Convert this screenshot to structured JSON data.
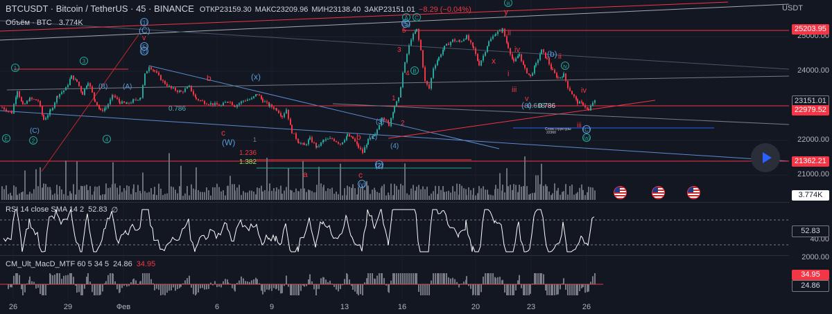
{
  "header": {
    "symbol": "BTCUSDT · Bitcoin / TetherUS · 45 · BINANCE",
    "open": "ОТКР23159.30",
    "high": "МАКС23209.96",
    "low": "МИН23138.40",
    "close": "ЗАКР23151.01",
    "change": "−8.29 (−0.04%)"
  },
  "volume_legend": {
    "label": "Объём · BTC",
    "value": "3.774K"
  },
  "rsi_legend": {
    "label": "RSI 14 close SMA 14 2",
    "value": "52.83",
    "extra": "∅"
  },
  "macd_legend": {
    "label": "CM_Ult_MacD_MTF 60 5 34 5",
    "value1": "24.86",
    "value2": "34.95"
  },
  "price_axis": {
    "currency": "USDT",
    "ticks": [
      "25000.00",
      "24000.00",
      "23000.00",
      "22000.00",
      "21000.00"
    ],
    "tags": [
      {
        "text": "25203.95",
        "color": "#f23645"
      },
      {
        "text": "23151.01",
        "color": "#787b86"
      },
      {
        "text": "22979.52",
        "color": "#f23645"
      },
      {
        "text": "21362.21",
        "color": "#f23645"
      },
      {
        "text": "3.774K",
        "color": "#d1d4dc"
      }
    ]
  },
  "rsi_axis": {
    "ticks": [
      "40.00"
    ],
    "tag": "52.83"
  },
  "macd_axis": {
    "ticks": [
      "2000.00"
    ],
    "tags": [
      "34.95",
      "24.86"
    ]
  },
  "dates": [
    "26",
    "29",
    "Фев",
    "6",
    "9",
    "13",
    "16",
    "20",
    "23",
    "26"
  ],
  "icons": [
    "play-icon",
    "us-flag-icon",
    "us-flag-icon",
    "us-flag-icon"
  ],
  "colors": {
    "background": "#131722",
    "up": "#26a69a",
    "down": "#f23645",
    "accent": "#2962ff",
    "rsi": "#ffffff"
  },
  "annotations": {
    "wave_circles_green": [
      "1",
      "3",
      "5",
      "2",
      "4",
      "E",
      "B",
      "A",
      "C",
      "iii",
      "iv"
    ],
    "wave_circles_blue": [
      "(1)",
      "(c)",
      "(5)",
      "(2)",
      "(y)",
      "(C)",
      "(a)"
    ],
    "blue_labels": [
      "(C)",
      "(W)",
      "(x)",
      "(b)",
      "(1)",
      "(2)",
      "(3)",
      "(4)",
      "(5)",
      "(a)",
      "(B)",
      "(A)",
      "(C)"
    ],
    "red_labels": [
      "y",
      "v",
      "b",
      "c",
      "a",
      "b",
      "c",
      "x",
      "i",
      "ii",
      "iii",
      "iv",
      "v",
      "ii",
      "iv",
      "iii",
      "3",
      "4",
      "5",
      "1",
      "2"
    ],
    "fib_labels": [
      "0.786",
      "0.786",
      "0.618",
      "1.236",
      "1.382",
      "1"
    ],
    "notes": [
      "Слом структуры",
      "22360"
    ]
  },
  "chart_data": {
    "type": "candlestick",
    "title": "BTCUSDT · Bitcoin / TetherUS · 45 · BINANCE",
    "x_ticks": [
      "26",
      "29",
      "Фев",
      "6",
      "9",
      "13",
      "16",
      "20",
      "23",
      "26"
    ],
    "ylim": [
      20500,
      25750
    ],
    "key_prices": {
      "open": 23159.3,
      "high": 23209.96,
      "low": 23138.4,
      "close": 23151.01,
      "levels": [
        25203.95,
        22979.52,
        21362.21
      ]
    },
    "price_path": [
      [
        0,
        22950
      ],
      [
        14,
        22800
      ],
      [
        22,
        23450
      ],
      [
        30,
        23000
      ],
      [
        40,
        23200
      ],
      [
        52,
        23150
      ],
      [
        60,
        22600
      ],
      [
        70,
        22850
      ],
      [
        80,
        23300
      ],
      [
        92,
        23500
      ],
      [
        100,
        23850
      ],
      [
        108,
        23700
      ],
      [
        116,
        23350
      ],
      [
        124,
        23700
      ],
      [
        134,
        23150
      ],
      [
        142,
        22850
      ],
      [
        150,
        22950
      ],
      [
        160,
        23300
      ],
      [
        170,
        23100
      ],
      [
        180,
        23050
      ],
      [
        190,
        23150
      ],
      [
        200,
        23250
      ],
      [
        206,
        23900
      ],
      [
        212,
        24150
      ],
      [
        220,
        24000
      ],
      [
        232,
        23700
      ],
      [
        244,
        23500
      ],
      [
        258,
        23400
      ],
      [
        270,
        23550
      ],
      [
        280,
        23200
      ],
      [
        292,
        23100
      ],
      [
        304,
        23050
      ],
      [
        316,
        23000
      ],
      [
        326,
        23150
      ],
      [
        336,
        23000
      ],
      [
        348,
        23150
      ],
      [
        360,
        23200
      ],
      [
        368,
        23350
      ],
      [
        376,
        23150
      ],
      [
        386,
        23000
      ],
      [
        396,
        22900
      ],
      [
        404,
        22700
      ],
      [
        410,
        22900
      ],
      [
        418,
        22250
      ],
      [
        428,
        21950
      ],
      [
        436,
        21850
      ],
      [
        444,
        22050
      ],
      [
        454,
        21800
      ],
      [
        464,
        22000
      ],
      [
        476,
        22050
      ],
      [
        488,
        21900
      ],
      [
        498,
        22150
      ],
      [
        506,
        22050
      ],
      [
        514,
        21800
      ],
      [
        520,
        21650
      ],
      [
        528,
        22000
      ],
      [
        538,
        22150
      ],
      [
        548,
        22700
      ],
      [
        558,
        22450
      ],
      [
        566,
        23000
      ],
      [
        572,
        23200
      ],
      [
        578,
        23950
      ],
      [
        584,
        24500
      ],
      [
        590,
        24950
      ],
      [
        598,
        25200
      ],
      [
        604,
        24600
      ],
      [
        610,
        23700
      ],
      [
        616,
        23500
      ],
      [
        622,
        24100
      ],
      [
        630,
        24400
      ],
      [
        638,
        24700
      ],
      [
        650,
        24900
      ],
      [
        660,
        24850
      ],
      [
        670,
        25000
      ],
      [
        680,
        24650
      ],
      [
        688,
        24200
      ],
      [
        694,
        24450
      ],
      [
        702,
        24850
      ],
      [
        712,
        25100
      ],
      [
        722,
        25200
      ],
      [
        730,
        24700
      ],
      [
        738,
        24250
      ],
      [
        746,
        24500
      ],
      [
        754,
        24050
      ],
      [
        762,
        23850
      ],
      [
        770,
        24200
      ],
      [
        778,
        24600
      ],
      [
        786,
        24350
      ],
      [
        794,
        24000
      ],
      [
        802,
        23800
      ],
      [
        810,
        23900
      ],
      [
        816,
        23550
      ],
      [
        822,
        23350
      ],
      [
        830,
        23100
      ],
      [
        838,
        23050
      ],
      [
        846,
        22850
      ],
      [
        852,
        23100
      ],
      [
        858,
        23151
      ]
    ],
    "series": [
      {
        "name": "RSI 14 close SMA 14 2",
        "last": 52.83
      },
      {
        "name": "CM_Ult_MacD_MTF 60 5 34 5",
        "last": [
          24.86,
          34.95
        ]
      }
    ]
  }
}
